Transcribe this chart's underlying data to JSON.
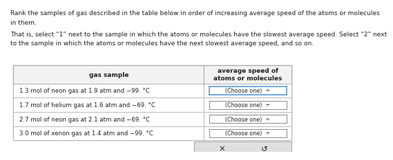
{
  "title_line1": "Rank the samples of gas described in the table below in order of increasing average speed of the atoms or molecules",
  "title_line2": "in them.",
  "subtitle_line1": "That is, select “1” next to the sample in which the atoms or molecules have the slowest average speed. Select “2” next",
  "subtitle_line2": "to the sample in which the atoms or molecules have the next slowest average speed, and so on.",
  "col1_header": "gas sample",
  "col2_header": "average speed of\natoms or molecules",
  "rows": [
    "1.3 mol of neon gas at 1.9 atm and −99. °C",
    "1.7 mol of helium gas at 1.6 atm and −69. °C",
    "2.7 mol of neon gas at 2.1 atm and −69. °C",
    "3.0 mol of xenon gas at 1.4 atm and −99. °C"
  ],
  "dropdown_text": "(Choose one)  ÷",
  "button_x": "×",
  "button_reset": "↺",
  "bg_color": "#ffffff",
  "text_color": "#222222",
  "table_border_color": "#aaaaaa",
  "header_bg": "#f2f2f2",
  "dropdown_bg": "#ffffff",
  "dropdown_border_normal": "#888888",
  "dropdown_border_highlight": "#4a90d9",
  "button_bar_bg": "#e0e0e0",
  "font_size_body": 6.5,
  "font_size_header": 6.5,
  "font_size_row": 6.2,
  "font_size_dropdown": 5.8,
  "font_size_btn": 8.5
}
